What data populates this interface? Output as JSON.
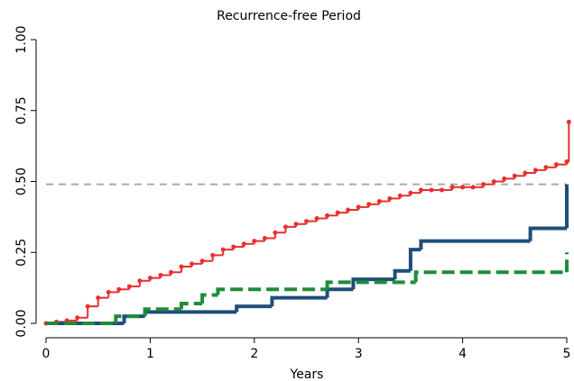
{
  "chart_data": {
    "type": "line",
    "step": true,
    "title": "Recurrence-free Period",
    "x_label": "Years",
    "xlim": [
      0,
      5
    ],
    "ylim": [
      0,
      1
    ],
    "xticks": [
      0,
      1,
      2,
      3,
      4,
      5
    ],
    "yticks": [
      {
        "value": 0,
        "label": "0.00"
      },
      {
        "value": 0.25,
        "label": "0.25"
      },
      {
        "value": 0.5,
        "label": "0.50"
      },
      {
        "value": 0.75,
        "label": "0.75"
      },
      {
        "value": 1,
        "label": "1.00"
      }
    ],
    "reference_line": 0.49,
    "reference_color": "#aaaaaa",
    "series": [
      {
        "color": "#e8302f",
        "markers": true,
        "dashed": false,
        "x": [
          0,
          0.1,
          0.2,
          0.3,
          0.4,
          0.5,
          0.6,
          0.7,
          0.8,
          0.9,
          1.0,
          1.1,
          1.2,
          1.3,
          1.4,
          1.5,
          1.6,
          1.7,
          1.8,
          1.9,
          2.0,
          2.1,
          2.2,
          2.3,
          2.4,
          2.5,
          2.6,
          2.7,
          2.8,
          2.9,
          3.0,
          3.1,
          3.2,
          3.3,
          3.4,
          3.5,
          3.6,
          3.7,
          3.8,
          3.9,
          4.0,
          4.1,
          4.2,
          4.3,
          4.4,
          4.5,
          4.6,
          4.7,
          4.8,
          4.9,
          5.0,
          5.02
        ],
        "values": [
          0,
          0.005,
          0.01,
          0.02,
          0.06,
          0.09,
          0.11,
          0.12,
          0.13,
          0.15,
          0.16,
          0.17,
          0.18,
          0.2,
          0.21,
          0.22,
          0.24,
          0.26,
          0.27,
          0.28,
          0.29,
          0.3,
          0.32,
          0.34,
          0.35,
          0.36,
          0.37,
          0.38,
          0.39,
          0.4,
          0.41,
          0.42,
          0.43,
          0.44,
          0.45,
          0.46,
          0.47,
          0.47,
          0.47,
          0.48,
          0.48,
          0.48,
          0.49,
          0.5,
          0.51,
          0.52,
          0.53,
          0.54,
          0.55,
          0.56,
          0.57,
          0.71
        ]
      },
      {
        "color": "#1f4e79",
        "markers": false,
        "dashed": false,
        "x": [
          0,
          0.75,
          0.95,
          1.83,
          2.17,
          2.7,
          2.95,
          3.35,
          3.5,
          3.6,
          4.65,
          5.0
        ],
        "values": [
          0,
          0.025,
          0.04,
          0.06,
          0.09,
          0.12,
          0.155,
          0.185,
          0.26,
          0.29,
          0.335,
          0.49
        ]
      },
      {
        "color": "#1e8c3a",
        "markers": false,
        "dashed": true,
        "x": [
          0,
          0.67,
          0.95,
          1.3,
          1.5,
          1.65,
          2.7,
          3.55,
          5.0
        ],
        "values": [
          0,
          0.025,
          0.05,
          0.07,
          0.1,
          0.12,
          0.145,
          0.18,
          0.25
        ]
      }
    ]
  }
}
